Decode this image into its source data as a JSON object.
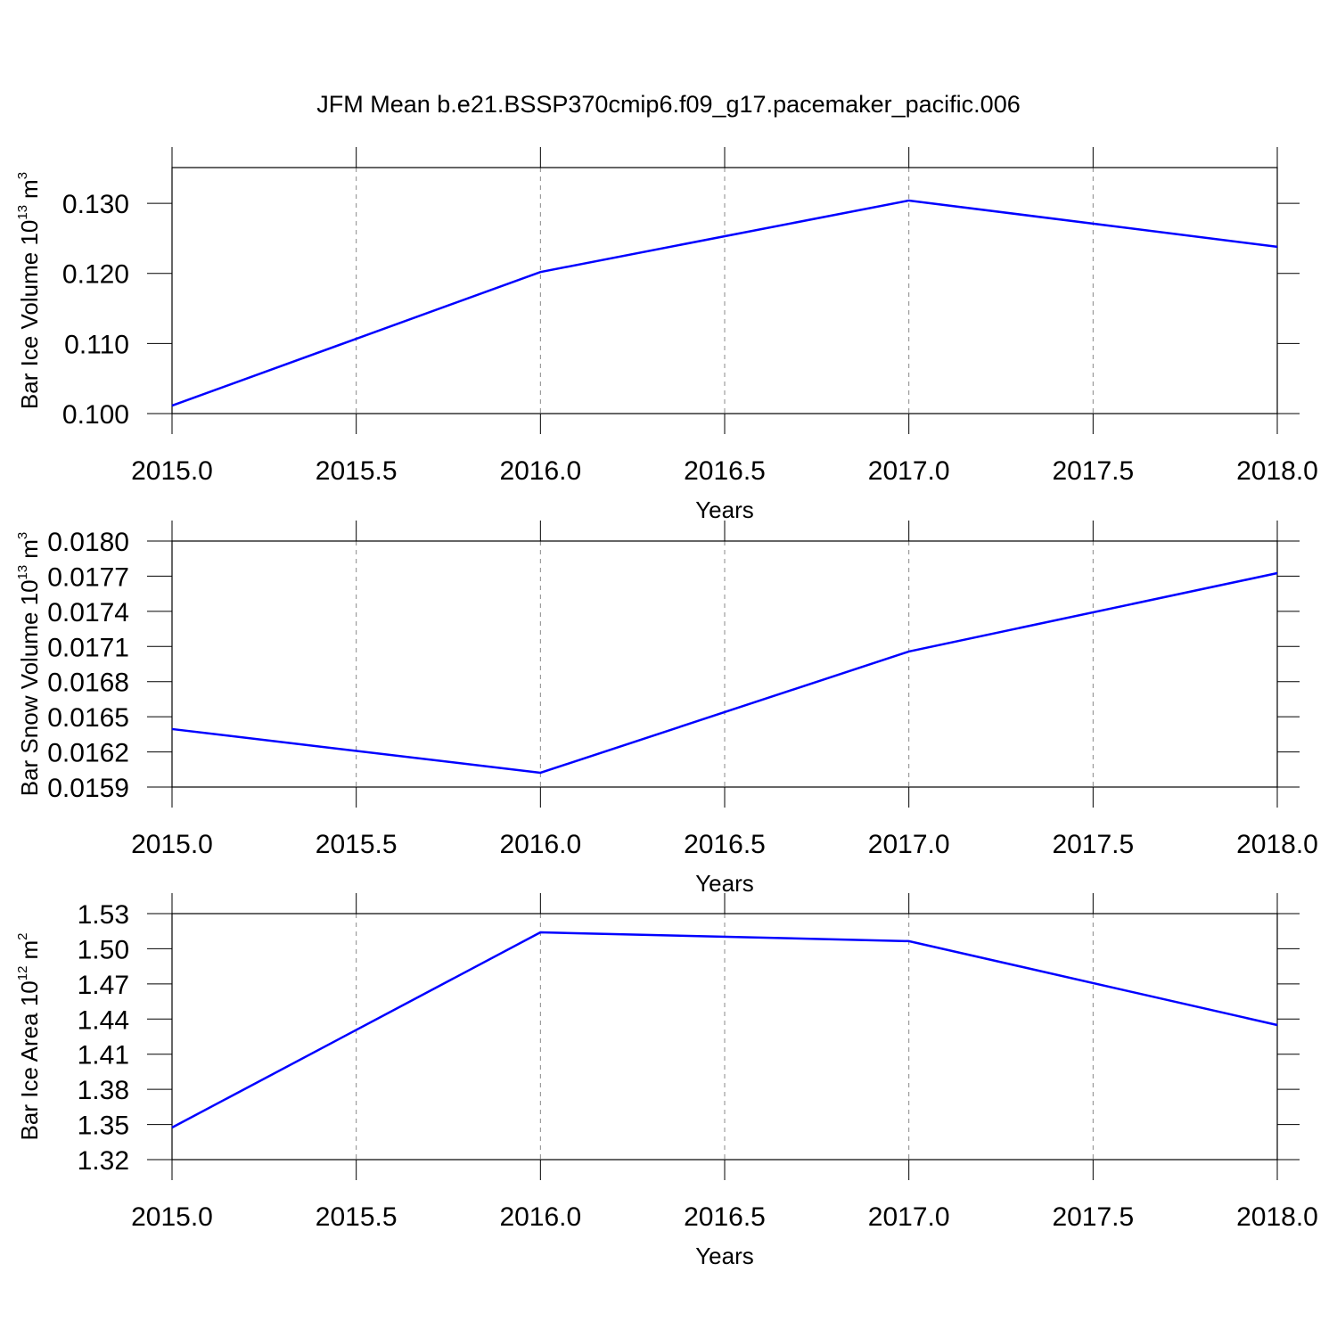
{
  "title": "JFM Mean b.e21.BSSP370cmip6.f09_g17.pacemaker_pacific.006",
  "chart_data": [
    {
      "type": "line",
      "ylabel": [
        "Bar Ice Volume 10",
        "13",
        "m",
        "3"
      ],
      "xlabel": "Years",
      "x": [
        2015,
        2016,
        2017,
        2018
      ],
      "series": [
        {
          "color": "#0000ff",
          "values": [
            0.10114,
            0.1202,
            0.1304,
            0.1238
          ]
        }
      ],
      "xlim": [
        2015,
        2018
      ],
      "xticks": [
        {
          "value": 2015,
          "label": "2015.0"
        },
        2015.5,
        {
          "value": 2016,
          "label": "2016.0"
        },
        2016.5,
        {
          "value": 2017,
          "label": "2017.0"
        },
        2017.5,
        {
          "value": 2018,
          "label": "2018.0"
        }
      ],
      "ylim": [
        0.1,
        0.1351
      ],
      "yticks": [
        {
          "value": 0.1,
          "label": "0.100"
        },
        {
          "value": 0.11,
          "label": "0.110"
        },
        {
          "value": 0.12,
          "label": "0.120"
        },
        {
          "value": 0.13,
          "label": "0.130"
        }
      ],
      "xgrid": true
    },
    {
      "type": "line",
      "ylabel": [
        "Bar Snow Volume 10",
        "13",
        "m",
        "3"
      ],
      "xlabel": "Years",
      "x": [
        2015,
        2016,
        2017,
        2018
      ],
      "series": [
        {
          "color": "#0000ff",
          "values": [
            0.016395,
            0.016022,
            0.017057,
            0.017726
          ]
        }
      ],
      "xlim": [
        2015,
        2018
      ],
      "xticks": [
        {
          "value": 2015,
          "label": "2015.0"
        },
        2015.5,
        {
          "value": 2016,
          "label": "2016.0"
        },
        2016.5,
        {
          "value": 2017,
          "label": "2017.0"
        },
        2017.5,
        {
          "value": 2018,
          "label": "2018.0"
        }
      ],
      "ylim": [
        0.0159,
        0.018
      ],
      "yticks": [
        0.0159,
        0.0162,
        0.0165,
        0.0168,
        0.0171,
        0.0174,
        0.0177,
        {
          "value": 0.018,
          "label": "0.0180"
        }
      ],
      "xgrid": true
    },
    {
      "type": "line",
      "ylabel": [
        "Bar Ice Area 10",
        "12",
        "m",
        "2"
      ],
      "xlabel": "Years",
      "x": [
        2015,
        2016,
        2017,
        2018
      ],
      "series": [
        {
          "color": "#0000ff",
          "values": [
            1.3474,
            1.514,
            1.5065,
            1.4349
          ]
        }
      ],
      "xlim": [
        2015,
        2018
      ],
      "xticks": [
        {
          "value": 2015,
          "label": "2015.0"
        },
        2015.5,
        {
          "value": 2016,
          "label": "2016.0"
        },
        2016.5,
        {
          "value": 2017,
          "label": "2017.0"
        },
        2017.5,
        {
          "value": 2018,
          "label": "2018.0"
        }
      ],
      "ylim": [
        1.32,
        1.53
      ],
      "yticks": [
        1.32,
        1.35,
        1.38,
        1.41,
        1.44,
        1.47,
        {
          "value": 1.5,
          "label": "1.50"
        },
        1.53
      ],
      "xgrid": true
    }
  ]
}
